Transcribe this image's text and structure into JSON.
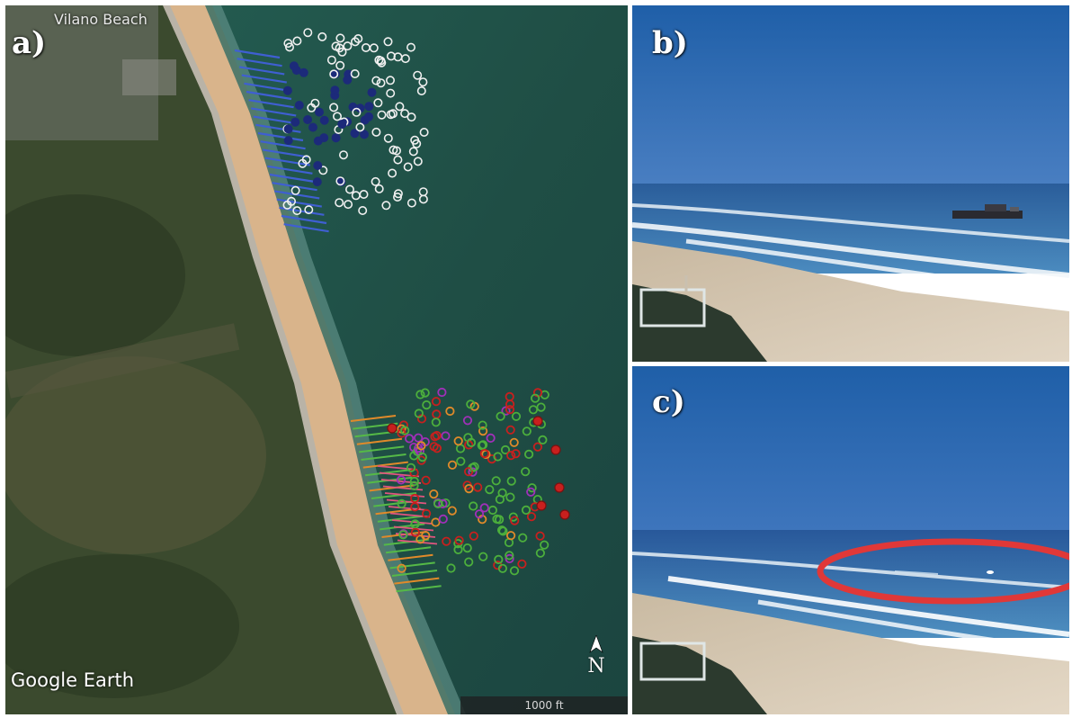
{
  "figure": {
    "panels": [
      {
        "id": "a",
        "label": "a)",
        "kind": "satellite-map"
      },
      {
        "id": "b",
        "label": "b)",
        "kind": "beach-photo-with-dredge-vessel"
      },
      {
        "id": "c",
        "label": "c)",
        "kind": "beach-photo-with-highlighted-feature"
      }
    ]
  },
  "map": {
    "place_label": "Vilano Beach",
    "watermark": "Google Earth",
    "scale_text": "1000 ft",
    "north_label": "N"
  },
  "colors": {
    "ocean": "#1f4e45",
    "sand": "#d9b48b",
    "vegetation": "#3b4a2e",
    "north_transects": "#3f5fd2",
    "south_transects_green": "#55b947",
    "south_transects_orange": "#e08a2a",
    "south_transects_pink": "#e0557f",
    "samples_white": "#f0f0f0",
    "samples_navy": "#1c2a7a",
    "samples_red": "#c8201e",
    "samples_green": "#4caf3c",
    "samples_purple": "#a030b8",
    "samples_orange": "#e08a2a",
    "highlight_ellipse": "#e03838"
  }
}
